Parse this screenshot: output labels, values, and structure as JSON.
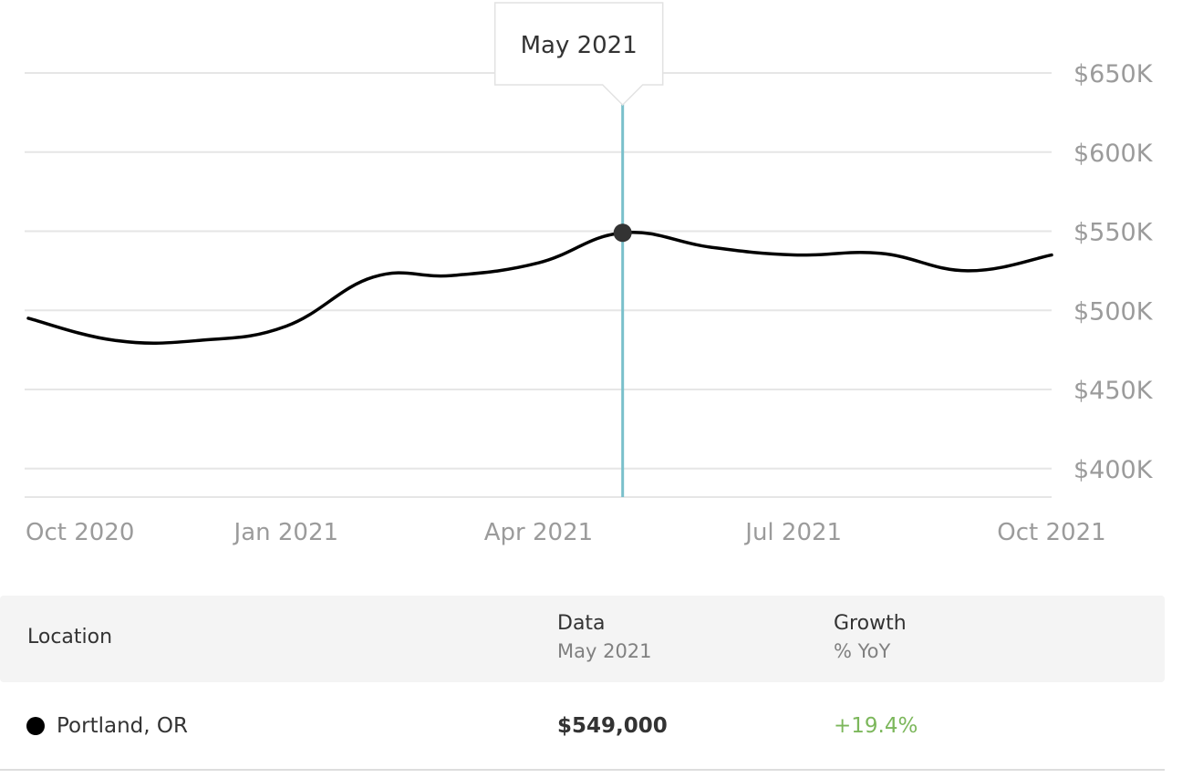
{
  "chart_data": {
    "type": "line",
    "x": [
      "2020-10-01",
      "2020-11-01",
      "2020-12-01",
      "2021-01-01",
      "2021-02-01",
      "2021-03-01",
      "2021-04-01",
      "2021-05-01",
      "2021-06-01",
      "2021-07-01",
      "2021-08-01",
      "2021-09-01",
      "2021-10-01"
    ],
    "series": [
      {
        "name": "Portland, OR",
        "values": [
          495000,
          481000,
          481000,
          490000,
          521000,
          522000,
          530000,
          549000,
          540000,
          535000,
          536000,
          525000,
          535000
        ]
      }
    ],
    "x_ticks": [
      "Oct 2020",
      "Jan 2021",
      "Apr 2021",
      "Jul 2021",
      "Oct 2021"
    ],
    "y_ticks": [
      "$400K",
      "$450K",
      "$500K",
      "$550K",
      "$600K",
      "$650K"
    ],
    "ylim": [
      382000,
      650000
    ],
    "grid": true,
    "highlight": {
      "x": "2021-05-01",
      "label": "May 2021"
    },
    "line_color": "#000000",
    "cursor_color": "#7ac0cb"
  },
  "table": {
    "headers": {
      "location": "Location",
      "data": "Data",
      "data_sub": "May 2021",
      "growth": "Growth",
      "growth_sub": "% YoY"
    },
    "rows": [
      {
        "location": "Portland, OR",
        "value": "$549,000",
        "growth": "+19.4%",
        "dot_color": "#000000"
      }
    ]
  }
}
